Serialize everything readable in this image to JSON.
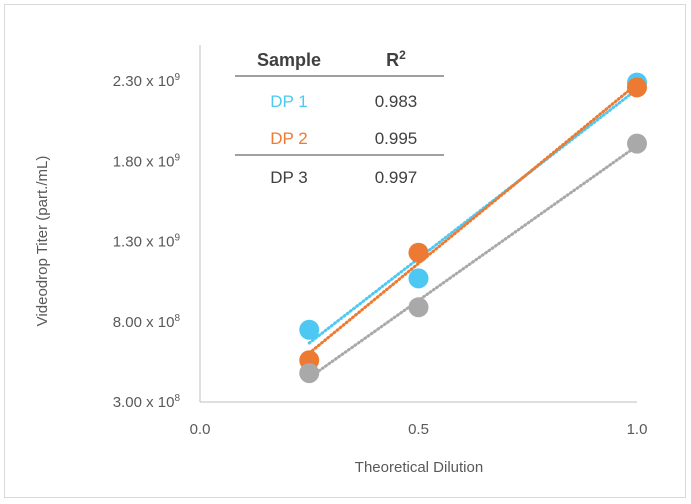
{
  "chart_data": {
    "type": "scatter",
    "xlabel": "Theoretical Dilution",
    "ylabel": "Videodrop Titer (part./mL)",
    "xlim": [
      0.0,
      1.0
    ],
    "ylim": [
      300000000,
      2550000000
    ],
    "x_ticks": [
      {
        "value": 0.0,
        "label": "0.0"
      },
      {
        "value": 0.5,
        "label": "0.5"
      },
      {
        "value": 1.0,
        "label": "1.0"
      }
    ],
    "y_ticks": [
      {
        "value": 300000000,
        "mantissa": "3.00 x 10",
        "exp": "8"
      },
      {
        "value": 800000000,
        "mantissa": "8.00 x 10",
        "exp": "8"
      },
      {
        "value": 1300000000,
        "mantissa": "1.30 x 10",
        "exp": "9"
      },
      {
        "value": 1800000000,
        "mantissa": "1.80 x 10",
        "exp": "9"
      },
      {
        "value": 2300000000,
        "mantissa": "2.30 x 10",
        "exp": "9"
      }
    ],
    "grid": false,
    "trendlines": "linear, dotted",
    "series": [
      {
        "name": "DP 1",
        "color": "#4dc8f2",
        "x": [
          0.25,
          0.5,
          1.0
        ],
        "y": [
          750000000,
          1070000000,
          2290000000
        ],
        "r2": "0.983"
      },
      {
        "name": "DP 2",
        "color": "#ed7a32",
        "x": [
          0.25,
          0.5,
          1.0
        ],
        "y": [
          560000000,
          1230000000,
          2260000000
        ],
        "r2": "0.995"
      },
      {
        "name": "DP 3",
        "color": "#a9a9a9",
        "x": [
          0.25,
          0.5,
          1.0
        ],
        "y": [
          480000000,
          890000000,
          1910000000
        ],
        "r2": "0.997"
      }
    ],
    "table": {
      "header_sample": "Sample",
      "header_r": "R",
      "header_r_sup": "2"
    }
  }
}
